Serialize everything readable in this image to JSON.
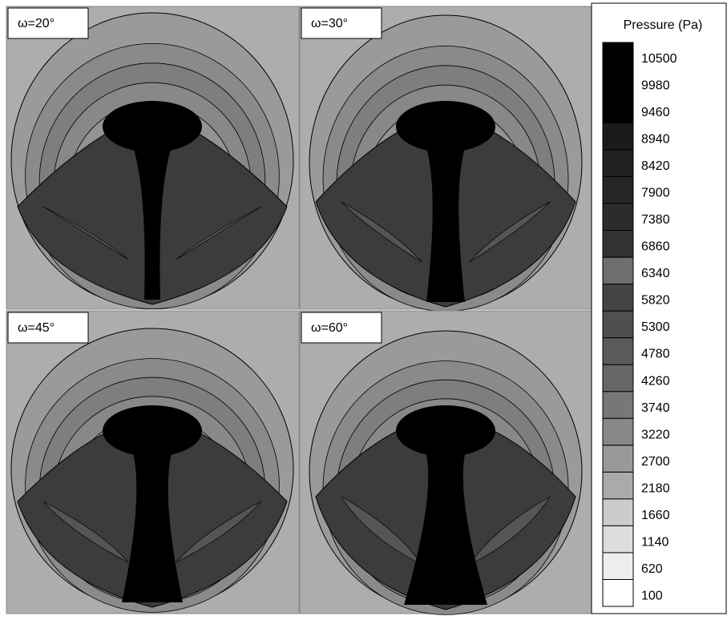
{
  "chart_data": {
    "type": "contour",
    "legend_title": "Pressure (Pa)",
    "panels": [
      {
        "title": "ω=20°"
      },
      {
        "title": "ω=30°"
      },
      {
        "title": "ω=45°"
      },
      {
        "title": "ω=60°"
      }
    ],
    "levels": [
      10500,
      9980,
      9460,
      8940,
      8420,
      7900,
      7380,
      6860,
      6340,
      5820,
      5300,
      4780,
      4260,
      3740,
      3220,
      2700,
      2180,
      1660,
      1140,
      620,
      100
    ],
    "level_colors": [
      "#000000",
      "#000000",
      "#000000",
      "#1a1a1a",
      "#202020",
      "#262626",
      "#2c2c2c",
      "#333333",
      "#6e6e6e",
      "#444444",
      "#4f4f4f",
      "#5a5a5a",
      "#666666",
      "#777777",
      "#888888",
      "#999999",
      "#aaaaaa",
      "#cccccc",
      "#dddddd",
      "#eeeeee",
      "#ffffff"
    ]
  }
}
